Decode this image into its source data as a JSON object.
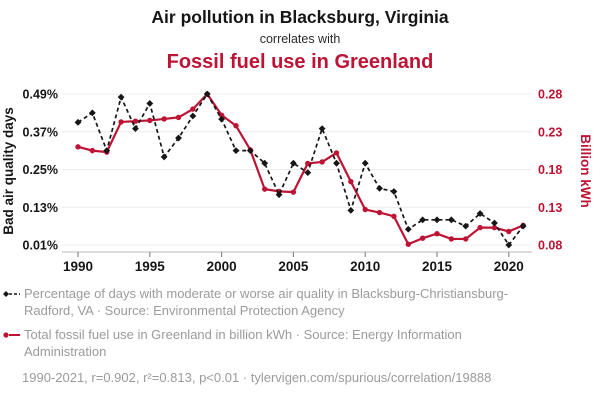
{
  "header": {
    "title": "Air pollution in Blacksburg, Virginia",
    "subtitle": "correlates with",
    "red_title": "Fossil fuel use in Greenland"
  },
  "colors": {
    "red": "#bd1435",
    "black": "#161616",
    "grid": "#ececec",
    "axis_line": "#c8c8c8",
    "tick_mark": "#8a8a8a",
    "legend_text": "#9b9b9b"
  },
  "chart_data": {
    "type": "line",
    "x": [
      1990,
      1991,
      1992,
      1993,
      1994,
      1995,
      1996,
      1997,
      1998,
      1999,
      2000,
      2001,
      2002,
      2003,
      2004,
      2005,
      2006,
      2007,
      2008,
      2009,
      2010,
      2011,
      2012,
      2013,
      2014,
      2015,
      2016,
      2017,
      2018,
      2019,
      2020,
      2021
    ],
    "series": [
      {
        "name": "Percentage of days with moderate or worse air quality in Blacksburg-Christiansburg-Radford, VA",
        "axis": "left",
        "color": "black",
        "line_style": "dashed",
        "marker": "diamond",
        "values": [
          0.4,
          0.43,
          0.31,
          0.48,
          0.38,
          0.46,
          0.29,
          0.35,
          0.42,
          0.49,
          0.41,
          0.31,
          0.31,
          0.27,
          0.17,
          0.27,
          0.24,
          0.38,
          0.27,
          0.12,
          0.27,
          0.19,
          0.18,
          0.06,
          0.09,
          0.09,
          0.09,
          0.07,
          0.11,
          0.08,
          0.01,
          0.07
        ]
      },
      {
        "name": "Total fossil fuel use in Greenland in billion kWh",
        "axis": "right",
        "color": "red",
        "line_style": "solid",
        "marker": "circle",
        "values": [
          0.21,
          0.205,
          0.203,
          0.243,
          0.244,
          0.245,
          0.247,
          0.249,
          0.26,
          0.28,
          0.252,
          0.238,
          0.206,
          0.154,
          0.151,
          0.15,
          0.188,
          0.19,
          0.202,
          0.164,
          0.127,
          0.123,
          0.118,
          0.081,
          0.089,
          0.095,
          0.088,
          0.088,
          0.103,
          0.103,
          0.098,
          0.106
        ]
      }
    ],
    "left_axis": {
      "label": "Bad air quality days",
      "ticks": [
        "0.49%",
        "0.37%",
        "0.25%",
        "0.13%",
        "0.01%"
      ],
      "tick_values": [
        0.49,
        0.37,
        0.25,
        0.13,
        0.01
      ],
      "max": 0.49,
      "min": 0.01
    },
    "right_axis": {
      "label": "Billion kWh",
      "ticks": [
        "0.28",
        "0.23",
        "0.18",
        "0.13",
        "0.08"
      ],
      "tick_values": [
        0.28,
        0.23,
        0.18,
        0.13,
        0.08
      ],
      "max": 0.28,
      "min": 0.08
    },
    "x_axis": {
      "ticks": [
        1990,
        1995,
        2000,
        2005,
        2010,
        2015,
        2020
      ],
      "range": [
        1990,
        2021
      ]
    },
    "grid": "horizontal",
    "legend_position": "bottom"
  },
  "legend": {
    "items": [
      {
        "text": "Percentage of days with moderate or worse air quality in Blacksburg-Christiansburg-Radford, VA · Source: Environmental Protection Agency"
      },
      {
        "text": "Total fossil fuel use in Greenland in billion kWh · Source: Energy Information Administration"
      }
    ]
  },
  "footer": "1990-2021, r=0.902, r²=0.813, p<0.01 · tylervigen.com/spurious/correlation/19888"
}
